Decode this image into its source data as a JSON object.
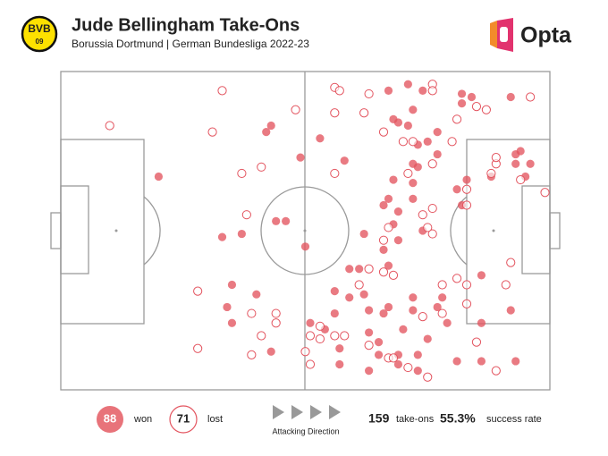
{
  "header": {
    "title": "Jude Bellingham Take-Ons",
    "subtitle": "Borussia Dortmund | German Bundesliga 2022-23",
    "crest": {
      "top": "BVB",
      "bottom": "09"
    },
    "brand": "Opta"
  },
  "chart_data": {
    "type": "scatter",
    "xlim": [
      0,
      100
    ],
    "ylim": [
      0,
      100
    ],
    "series": [
      {
        "name": "won",
        "count": 88,
        "color": "#e3545f",
        "filled": true,
        "x": [
          20,
          42,
          43,
          44,
          46,
          33,
          37,
          35,
          40,
          34,
          35,
          43,
          49,
          50,
          53,
          58,
          59,
          67,
          71,
          74,
          68,
          69,
          72,
          71,
          77,
          73,
          82,
          82,
          92,
          84,
          75,
          77,
          73,
          72,
          68,
          72,
          67,
          72,
          66,
          69,
          81,
          83,
          82,
          74,
          62,
          68,
          66,
          69,
          67,
          61,
          56,
          59,
          72,
          78,
          88,
          93,
          94,
          93,
          96,
          95,
          86,
          92,
          51,
          56,
          63,
          66,
          70,
          79,
          86,
          57,
          63,
          65,
          65,
          69,
          73,
          75,
          57,
          63,
          69,
          73,
          81,
          86,
          93,
          77,
          67,
          62,
          72,
          54
        ],
        "y": [
          67,
          81,
          83,
          53,
          53,
          48,
          49,
          33,
          30,
          26,
          21,
          12,
          73,
          45,
          79,
          72,
          38,
          94,
          96,
          94,
          85,
          84,
          88,
          83,
          81,
          77,
          90,
          93,
          92,
          92,
          78,
          74,
          70,
          71,
          66,
          65,
          60,
          60,
          58,
          56,
          63,
          66,
          58,
          50,
          49,
          52,
          44,
          47,
          39,
          38,
          31,
          29,
          29,
          29,
          67,
          71,
          75,
          74,
          71,
          67,
          36,
          25,
          21,
          24,
          25,
          24,
          19,
          21,
          21,
          13,
          18,
          15,
          11,
          11,
          11,
          16,
          8,
          6,
          8,
          6,
          9,
          9,
          9,
          26,
          26,
          30,
          25,
          19
        ]
      },
      {
        "name": "lost",
        "count": 71,
        "color": "#e3545f",
        "filled": false,
        "x": [
          10,
          33,
          31,
          37,
          41,
          48,
          38,
          28,
          39,
          44,
          44,
          41,
          28,
          39,
          50,
          53,
          56,
          57,
          56,
          56,
          63,
          62,
          66,
          70,
          72,
          76,
          76,
          81,
          85,
          87,
          96,
          80,
          89,
          89,
          88,
          94,
          99,
          83,
          76,
          71,
          76,
          74,
          76,
          66,
          67,
          75,
          63,
          66,
          68,
          81,
          83,
          83,
          92,
          91,
          83,
          78,
          74,
          61,
          56,
          51,
          53,
          58,
          63,
          67,
          68,
          71,
          75,
          78,
          85,
          89,
          51
        ],
        "y": [
          83,
          94,
          81,
          68,
          70,
          88,
          55,
          31,
          24,
          24,
          21,
          17,
          13,
          11,
          12,
          20,
          95,
          94,
          87,
          68,
          93,
          87,
          81,
          78,
          78,
          96,
          94,
          85,
          89,
          88,
          92,
          78,
          71,
          73,
          68,
          66,
          62,
          63,
          71,
          68,
          57,
          55,
          49,
          47,
          51,
          51,
          38,
          37,
          36,
          35,
          33,
          27,
          40,
          33,
          58,
          33,
          23,
          33,
          17,
          17,
          16,
          17,
          14,
          10,
          10,
          7,
          4,
          24,
          15,
          6,
          8
        ]
      }
    ],
    "total": 159,
    "total_label": "take-ons",
    "success_rate": {
      "value": 55.3,
      "label": "55.3%"
    },
    "success_label": "success rate",
    "direction_label": "Attacking Direction"
  }
}
